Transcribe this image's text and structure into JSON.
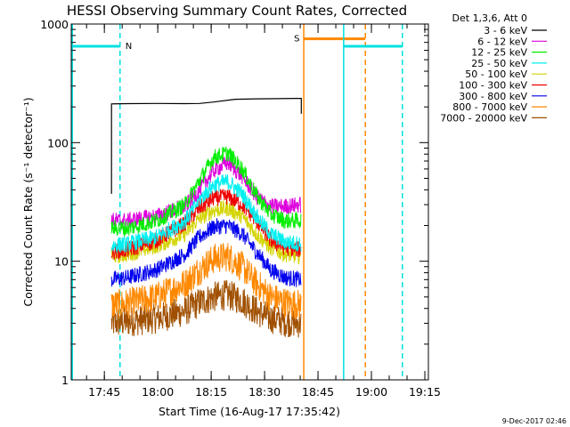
{
  "chart_data": {
    "type": "line",
    "title": "HESSI Observing Summary Count Rates, Corrected",
    "xlabel": "Start Time (16-Aug-17 17:35:42)",
    "ylabel": "Corrected Count Rate (s⁻¹ detector⁻¹)",
    "footer": "9-Dec-2017 02:46",
    "xaxis": {
      "unit": "minutes after 17:35:42",
      "range": [
        0,
        100.3
      ]
    },
    "yaxis": {
      "scale": "log",
      "range": [
        1,
        1000
      ]
    },
    "x_ticks": [
      {
        "label": "17:45",
        "x": 9.3
      },
      {
        "label": "18:00",
        "x": 24.3
      },
      {
        "label": "18:15",
        "x": 39.3
      },
      {
        "label": "18:30",
        "x": 54.3
      },
      {
        "label": "18:45",
        "x": 69.3
      },
      {
        "label": "19:00",
        "x": 84.3
      },
      {
        "label": "19:15",
        "x": 99.3
      }
    ],
    "y_ticks": [
      {
        "label": "1",
        "y": 1
      },
      {
        "label": "10",
        "y": 10
      },
      {
        "label": "100",
        "y": 100
      },
      {
        "label": "1000",
        "y": 1000
      }
    ],
    "legend_title": "Det 1,3,6, Att 0",
    "legend_position": "top-right",
    "series": [
      {
        "name": "3 - 6 keV",
        "color": "#000000",
        "x": [
          11.3,
          11.3,
          16,
          24,
          32,
          36,
          40,
          46,
          52,
          58,
          63,
          64.6,
          64.6
        ],
        "y": [
          37,
          212,
          213,
          214,
          213,
          214,
          220,
          232,
          234,
          235,
          236,
          236,
          175
        ]
      },
      {
        "name": "6 - 12 keV",
        "color": "#dd00dd",
        "x": [
          11.3,
          16,
          24,
          32,
          36,
          40,
          44,
          48,
          52,
          56,
          60,
          64.6
        ],
        "y": [
          22,
          22,
          24,
          29,
          40,
          58,
          68,
          52,
          35,
          29,
          29,
          30
        ]
      },
      {
        "name": "12 - 25 keV",
        "color": "#00ee00",
        "x": [
          11.3,
          16,
          24,
          32,
          36,
          40,
          44,
          48,
          52,
          56,
          60,
          64.6
        ],
        "y": [
          19,
          19,
          22,
          30,
          48,
          75,
          82,
          60,
          36,
          25,
          22,
          22
        ]
      },
      {
        "name": "25 - 50 keV",
        "color": "#00f0f0",
        "x": [
          11.3,
          16,
          24,
          32,
          36,
          40,
          44,
          48,
          52,
          56,
          60,
          64.6
        ],
        "y": [
          13.5,
          14,
          16,
          22,
          33,
          44,
          47,
          37,
          24,
          17,
          14.5,
          14
        ]
      },
      {
        "name": "50 - 100 keV",
        "color": "#d4d400",
        "x": [
          11.3,
          16,
          24,
          32,
          36,
          40,
          44,
          48,
          52,
          56,
          60,
          64.6
        ],
        "y": [
          11,
          11.5,
          13.5,
          17,
          23,
          27,
          28,
          24,
          17,
          13,
          11.5,
          11
        ]
      },
      {
        "name": "100 - 300 keV",
        "color": "#ee0000",
        "x": [
          11.3,
          16,
          24,
          32,
          36,
          40,
          44,
          48,
          52,
          56,
          60,
          64.6
        ],
        "y": [
          12,
          12.5,
          15,
          21,
          28,
          34,
          35,
          30,
          22,
          15,
          13,
          12.5
        ]
      },
      {
        "name": "300 - 800 keV",
        "color": "#0000ee",
        "x": [
          11.3,
          16,
          24,
          32,
          36,
          40,
          44,
          48,
          52,
          56,
          60,
          64.6
        ],
        "y": [
          7,
          7.3,
          8.5,
          11.5,
          16,
          19.5,
          20,
          17,
          12,
          8.5,
          7.3,
          7
        ]
      },
      {
        "name": "800 - 7000 keV",
        "color": "#ff8800",
        "x": [
          11.3,
          16,
          24,
          32,
          36,
          40,
          44,
          48,
          52,
          56,
          60,
          64.6
        ],
        "y": [
          4.3,
          4.4,
          5,
          6.5,
          8.5,
          10.5,
          11,
          9,
          6.5,
          5,
          4.5,
          4.3
        ]
      },
      {
        "name": "7000 - 20000 keV",
        "color": "#a05000",
        "x": [
          11.3,
          16,
          24,
          32,
          36,
          40,
          44,
          48,
          52,
          56,
          60,
          64.6
        ],
        "y": [
          3,
          3.1,
          3.3,
          3.8,
          4.5,
          5,
          5.2,
          4.7,
          3.8,
          3.3,
          3.1,
          3
        ]
      }
    ],
    "flag_markers": [
      {
        "label": "N",
        "color": "#00e0e0",
        "x_start": 0.3,
        "x_end": 13.7,
        "level": 650,
        "start_line_style": "solid",
        "end_line_style": "dashed"
      },
      {
        "label": "S",
        "color": "#ff8800",
        "x_start": 65.3,
        "x_end": 82.6,
        "level": 750,
        "start_line_style": "solid",
        "end_line_style": "dashed"
      },
      {
        "label": "",
        "color": "#00e0e0",
        "x_start": 76.5,
        "x_end": 93.0,
        "level": 650,
        "start_line_style": "solid",
        "end_line_style": "dashed"
      }
    ]
  }
}
